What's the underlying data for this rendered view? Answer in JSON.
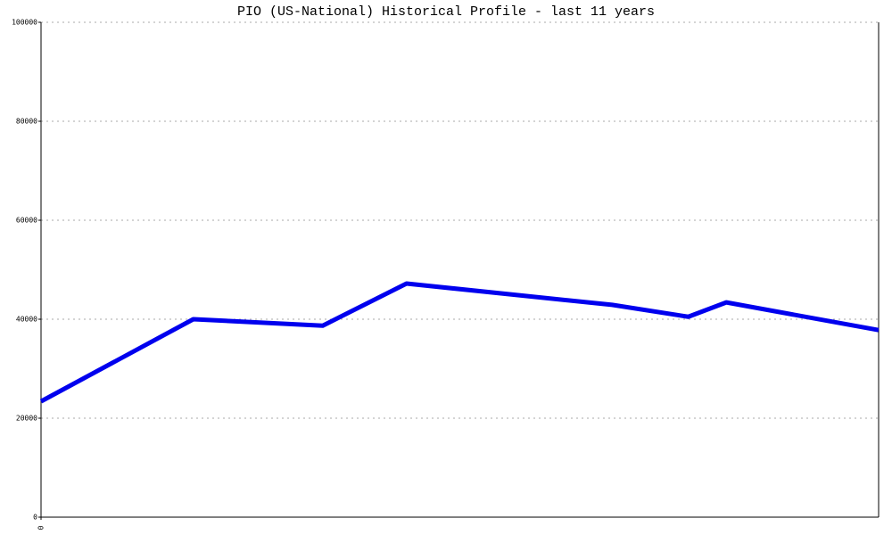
{
  "chart_data": {
    "type": "line",
    "title": "PIO (US-National) Historical Profile - last 11 years",
    "series": [
      {
        "color": "#0000ee",
        "values": [
          23400,
          40000,
          38700,
          47200,
          42900,
          40500,
          43400,
          37800
        ]
      }
    ],
    "x": [
      0,
      2,
      3.7,
      4.8,
      7.5,
      8.5,
      9,
      11
    ],
    "xlim": [
      0,
      11
    ],
    "xticks": [
      0
    ],
    "ylim": [
      0,
      100000
    ],
    "yticks": [
      0,
      20000,
      40000,
      60000,
      80000,
      100000
    ],
    "grid": true
  }
}
